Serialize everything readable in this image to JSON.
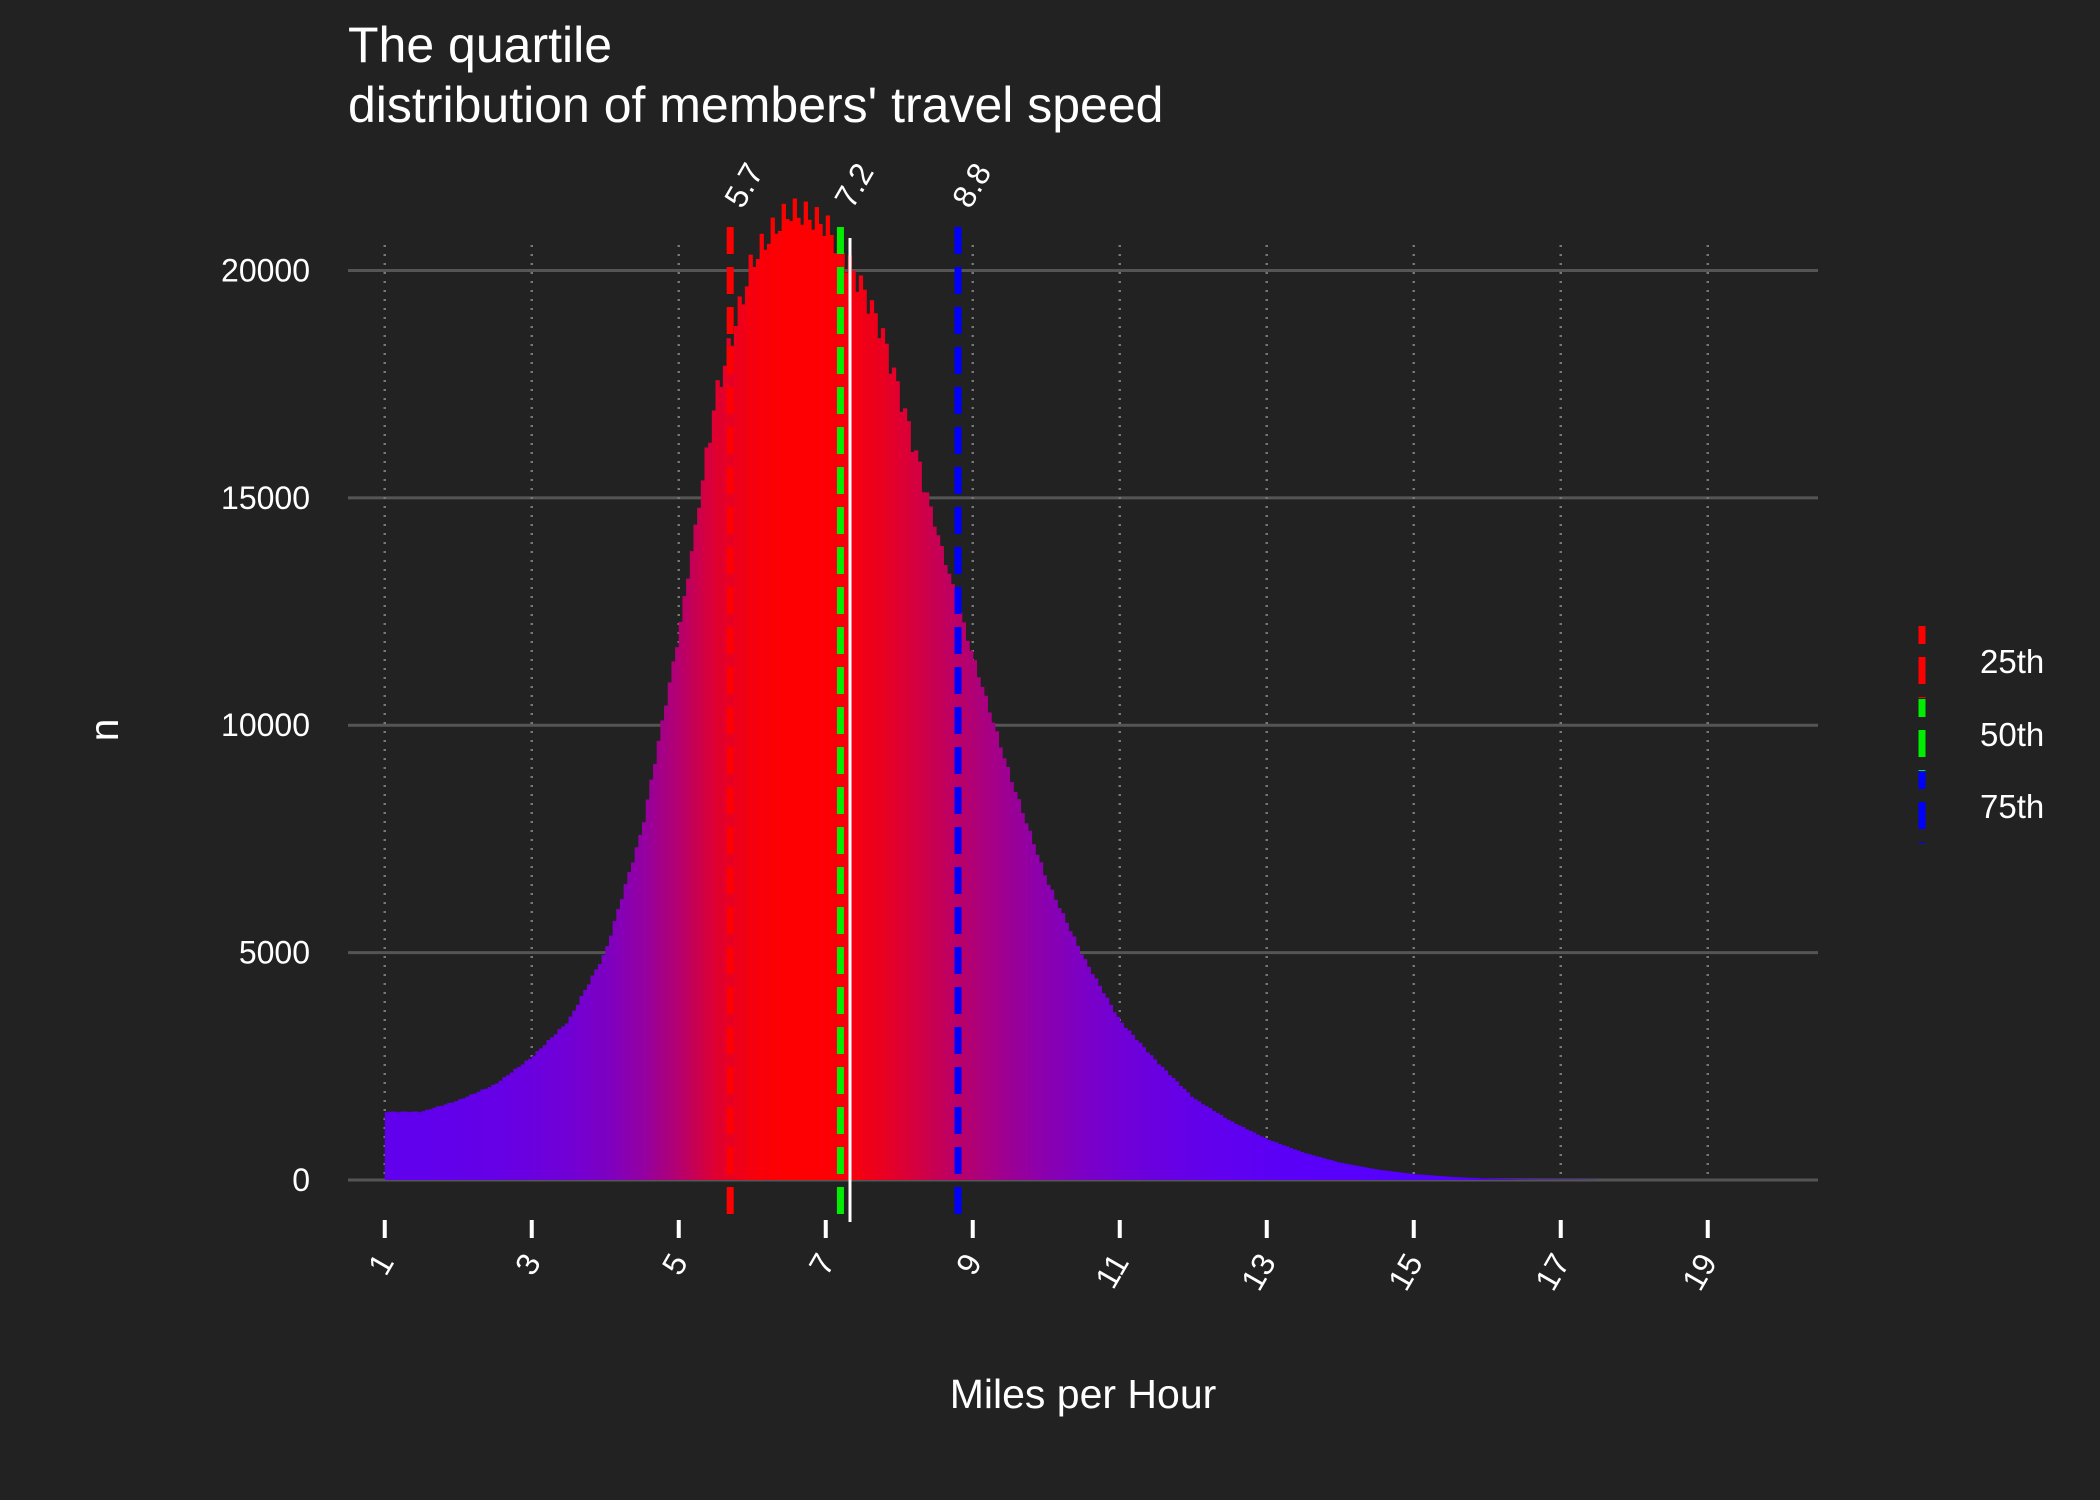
{
  "chart_data": {
    "type": "bar",
    "title_lines": [
      "The quartile",
      "distribution of members' travel speed"
    ],
    "xlabel": "Miles per Hour",
    "ylabel": "n",
    "xlim": [
      0.5,
      20.5
    ],
    "ylim": [
      0,
      21000
    ],
    "x_ticks": [
      "1",
      "3",
      "5",
      "7",
      "9",
      "11",
      "13",
      "15",
      "17",
      "19"
    ],
    "y_ticks": [
      "0",
      "5000",
      "10000",
      "15000",
      "20000"
    ],
    "grid": "horizontal solid, vertical dotted",
    "bin_width": 0.05,
    "histogram": {
      "x": [
        1,
        1.5,
        2,
        2.5,
        3,
        3.5,
        4,
        4.5,
        5,
        5.5,
        6,
        6.25,
        6.5,
        6.75,
        7,
        7.25,
        7.5,
        7.75,
        8,
        8.5,
        9,
        9.5,
        10,
        10.5,
        11,
        11.5,
        12,
        12.5,
        13,
        13.5,
        14,
        14.5,
        15,
        15.5,
        16,
        16.5,
        17,
        17.5,
        18,
        19,
        20
      ],
      "n": [
        1500,
        1500,
        1750,
        2100,
        2700,
        3500,
        5000,
        7700,
        12000,
        17200,
        20200,
        20800,
        21300,
        21200,
        21000,
        20300,
        19600,
        18700,
        17300,
        14300,
        11500,
        8900,
        6600,
        4900,
        3500,
        2600,
        1800,
        1300,
        900,
        600,
        380,
        230,
        130,
        70,
        30,
        15,
        8,
        4,
        2,
        1,
        0
      ]
    },
    "color_scale": {
      "low": "#5500ff",
      "high": "#ff0000"
    },
    "mean_line": {
      "x": 7.33,
      "color": "#ffffff"
    },
    "quantiles": [
      {
        "name": "25th",
        "x": 5.7,
        "label": "5.7",
        "color": "#ff0000"
      },
      {
        "name": "50th",
        "x": 7.2,
        "label": "7.2",
        "color": "#00ee00"
      },
      {
        "name": "75th",
        "x": 8.8,
        "label": "8.8",
        "color": "#0000ff"
      }
    ],
    "legend": {
      "position": "right",
      "items": [
        {
          "label": "25th",
          "color": "#ff0000"
        },
        {
          "label": "50th",
          "color": "#00ee00"
        },
        {
          "label": "75th",
          "color": "#0000ff"
        }
      ]
    }
  }
}
